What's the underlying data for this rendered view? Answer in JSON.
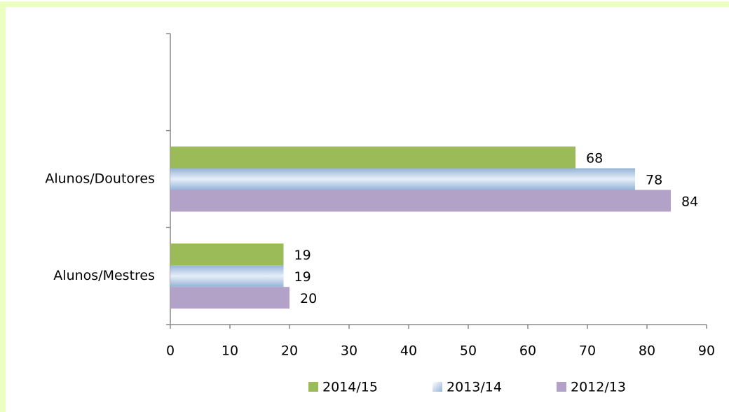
{
  "chart_data": {
    "type": "bar",
    "orientation": "horizontal",
    "categories": [
      "Alunos/Mestres",
      "Alunos/Doutores",
      null
    ],
    "series": [
      {
        "name": "2014/15",
        "color": "#9bbb59",
        "values": [
          19,
          68,
          null
        ]
      },
      {
        "name": "2013/14",
        "color": "#95b3d7",
        "values": [
          19,
          78,
          null
        ]
      },
      {
        "name": "2012/13",
        "color": "#b3a2c7",
        "values": [
          20,
          84,
          null
        ]
      }
    ],
    "xlim": [
      0,
      90
    ],
    "xticks": [
      0,
      10,
      20,
      30,
      40,
      50,
      60,
      70,
      80,
      90
    ],
    "legend": "bottom"
  }
}
